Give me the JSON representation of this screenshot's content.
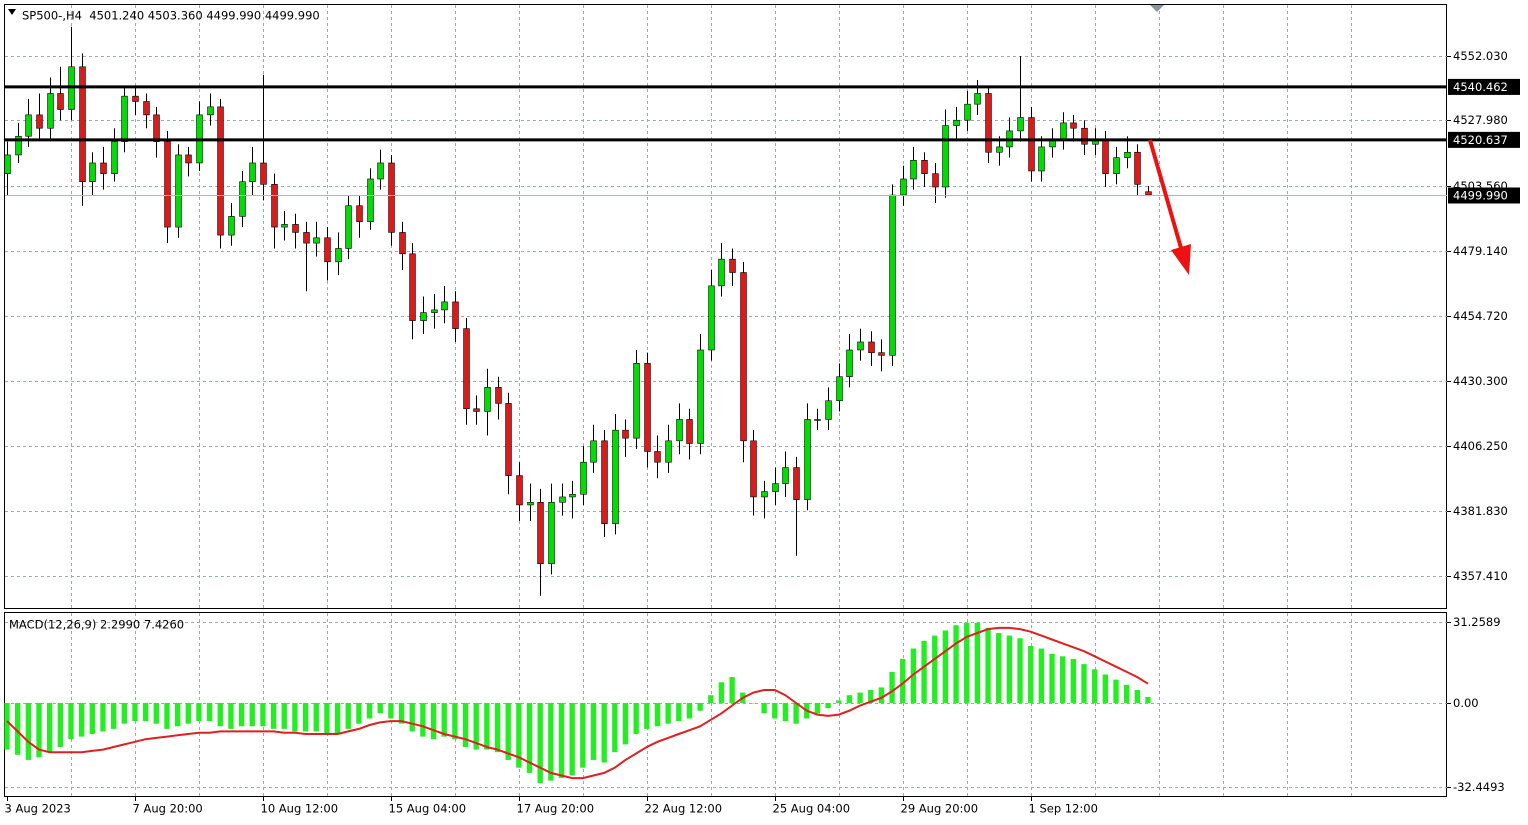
{
  "chart_data": [
    {
      "type": "candlestick",
      "title": "SP500-,H4  4501.240 4503.360 4499.990 4499.990",
      "categories": [
        "3 Aug 2023",
        null,
        null,
        null,
        null,
        null,
        null,
        null,
        null,
        null,
        null,
        null,
        "7 Aug 20:00",
        null,
        null,
        null,
        null,
        null,
        null,
        null,
        null,
        null,
        null,
        null,
        "10 Aug 12:00",
        null,
        null,
        null,
        null,
        null,
        null,
        null,
        null,
        null,
        null,
        null,
        "15 Aug 04:00",
        null,
        null,
        null,
        null,
        null,
        null,
        null,
        null,
        null,
        null,
        null,
        "17 Aug 20:00",
        null,
        null,
        null,
        null,
        null,
        null,
        null,
        null,
        null,
        null,
        null,
        "22 Aug 12:00",
        null,
        null,
        null,
        null,
        null,
        null,
        null,
        null,
        null,
        null,
        null,
        "25 Aug 04:00",
        null,
        null,
        null,
        null,
        null,
        null,
        null,
        null,
        null,
        null,
        null,
        "29 Aug 20:00",
        null,
        null,
        null,
        null,
        null,
        null,
        null,
        null,
        null,
        null,
        null,
        "1 Sep 12:00",
        null,
        null,
        null,
        null,
        null,
        null,
        null,
        null,
        null,
        null,
        null
      ],
      "open": [
        4508,
        4515,
        4522,
        4530,
        4525,
        4538,
        4532,
        4548,
        4505,
        4512,
        4508,
        4520,
        4537,
        4535,
        4530,
        4520,
        4488,
        4515,
        4512,
        4530,
        4533,
        4485,
        4492,
        4505,
        4512,
        4504,
        4488,
        4489,
        4486,
        4482,
        4484,
        4475,
        4480,
        4496,
        4490,
        4506,
        4512,
        4486,
        4478,
        4453,
        4456,
        4457,
        4460,
        4450,
        4420,
        4419,
        4428,
        4422,
        4395,
        4384,
        4385,
        4362,
        4385,
        4387,
        4388,
        4400,
        4408,
        4377,
        4412,
        4409,
        4437,
        4404,
        4400,
        4408,
        4416,
        4407,
        4442,
        4466,
        4476,
        4471,
        4408,
        4387,
        4389,
        4392,
        4398,
        4386,
        4416,
        4416,
        4423,
        4432,
        4442,
        4445,
        4441,
        4440,
        4500,
        4506,
        4513,
        4508,
        4503,
        4526,
        4528,
        4534,
        4538,
        4516,
        4518,
        4524,
        4529,
        4509,
        4518,
        4521,
        4527,
        4525,
        4519,
        4521,
        4508,
        4514,
        4516,
        4501.24
      ],
      "high": [
        4520,
        4527,
        4536,
        4538,
        4544,
        4548,
        4563,
        4553,
        4516,
        4518,
        4525,
        4541,
        4541,
        4538,
        4533,
        4524,
        4519,
        4518,
        4535,
        4538,
        4536,
        4497,
        4509,
        4518,
        4545,
        4508,
        4494,
        4493,
        4490,
        4490,
        4488,
        4486,
        4500,
        4500,
        4510,
        4517,
        4515,
        4490,
        4482,
        4462,
        4463,
        4466,
        4464,
        4454,
        4425,
        4435,
        4432,
        4426,
        4400,
        4392,
        4390,
        4392,
        4392,
        4393,
        4406,
        4414,
        4412,
        4418,
        4416,
        4442,
        4441,
        4410,
        4414,
        4422,
        4420,
        4448,
        4472,
        4482,
        4480,
        4475,
        4412,
        4393,
        4398,
        4404,
        4402,
        4422,
        4420,
        4428,
        4437,
        4448,
        4450,
        4449,
        4446,
        4504,
        4511,
        4518,
        4516,
        4512,
        4532,
        4533,
        4539,
        4543,
        4541,
        4522,
        4529,
        4552,
        4533,
        4522,
        4525,
        4531,
        4530,
        4528,
        4525,
        4524,
        4518,
        4522,
        4519,
        4503.36
      ],
      "low": [
        4500,
        4512,
        4518,
        4521,
        4521,
        4528,
        4528,
        4496,
        4500,
        4502,
        4505,
        4516,
        4530,
        4525,
        4514,
        4482,
        4484,
        4507,
        4509,
        4526,
        4480,
        4481,
        4488,
        4500,
        4498,
        4480,
        4483,
        4480,
        4464,
        4477,
        4468,
        4470,
        4476,
        4484,
        4487,
        4502,
        4481,
        4472,
        4446,
        4448,
        4450,
        4452,
        4445,
        4414,
        4414,
        4410,
        4416,
        4388,
        4378,
        4378,
        4350,
        4358,
        4380,
        4379,
        4384,
        4396,
        4372,
        4373,
        4402,
        4405,
        4398,
        4394,
        4396,
        4403,
        4401,
        4403,
        4438,
        4462,
        4466,
        4400,
        4380,
        4379,
        4384,
        4387,
        4365,
        4382,
        4412,
        4412,
        4419,
        4428,
        4438,
        4436,
        4434,
        4436,
        4496,
        4502,
        4503,
        4497,
        4499,
        4521,
        4524,
        4530,
        4512,
        4511,
        4514,
        4520,
        4505,
        4505,
        4514,
        4517,
        4520,
        4515,
        4515,
        4503,
        4504,
        4510,
        4500,
        4499.99
      ],
      "close": [
        4515,
        4522,
        4530,
        4525,
        4538,
        4532,
        4548,
        4505,
        4512,
        4508,
        4520,
        4537,
        4535,
        4530,
        4520,
        4488,
        4515,
        4512,
        4530,
        4533,
        4485,
        4492,
        4505,
        4512,
        4504,
        4488,
        4489,
        4486,
        4482,
        4484,
        4475,
        4480,
        4496,
        4490,
        4506,
        4512,
        4486,
        4478,
        4453,
        4456,
        4457,
        4460,
        4450,
        4420,
        4419,
        4428,
        4422,
        4395,
        4384,
        4385,
        4362,
        4385,
        4387,
        4388,
        4400,
        4408,
        4377,
        4412,
        4409,
        4437,
        4404,
        4400,
        4408,
        4416,
        4407,
        4442,
        4466,
        4476,
        4471,
        4408,
        4387,
        4389,
        4392,
        4398,
        4386,
        4416,
        4416,
        4423,
        4432,
        4442,
        4445,
        4441,
        4440,
        4500,
        4506,
        4513,
        4508,
        4503,
        4526,
        4528,
        4534,
        4538,
        4516,
        4518,
        4524,
        4529,
        4509,
        4518,
        4521,
        4527,
        4525,
        4519,
        4521,
        4508,
        4514,
        4516,
        4504,
        4499.99
      ],
      "up_color": "#00dd00",
      "down_color": "#dd1a1a",
      "ylim": [
        4345.06,
        4571.12
      ],
      "yticks": [
        {
          "value": 4552.03,
          "label": "4552.030"
        },
        {
          "value": 4527.98,
          "label": "4527.980"
        },
        {
          "value": 4503.56,
          "label": "4503.560"
        },
        {
          "value": 4479.14,
          "label": "4479.140"
        },
        {
          "value": 4454.72,
          "label": "4454.720"
        },
        {
          "value": 4430.3,
          "label": "4430.300"
        },
        {
          "value": 4406.25,
          "label": "4406.250"
        },
        {
          "value": 4381.83,
          "label": "4381.830"
        },
        {
          "value": 4357.41,
          "label": "4357.410"
        }
      ],
      "grid": true,
      "levels": [
        4540.462,
        4520.637
      ],
      "last_price": {
        "value": 4499.99,
        "label": "4499.990"
      }
    },
    {
      "type": "macd",
      "title": "MACD(12,26,9) 2.2990 7.4260",
      "histogram": {
        "color": "#22ee22",
        "values": [
          -18,
          -20,
          -22,
          -21,
          -19,
          -17,
          -14,
          -13,
          -12,
          -11,
          -10,
          -8,
          -7,
          -7,
          -8,
          -10,
          -9,
          -8,
          -7,
          -7,
          -9,
          -10,
          -9,
          -9,
          -9,
          -10,
          -10,
          -11,
          -11,
          -11,
          -12,
          -12,
          -10,
          -8,
          -6,
          -4,
          -6,
          -8,
          -11,
          -13,
          -14,
          -13,
          -14,
          -17,
          -18,
          -18,
          -19,
          -22,
          -25,
          -27,
          -31,
          -30,
          -29,
          -28,
          -25,
          -22,
          -23,
          -19,
          -16,
          -12,
          -10,
          -9,
          -8,
          -7,
          -6,
          -3,
          3,
          8,
          10,
          4,
          0,
          -4,
          -6,
          -7,
          -8,
          -6,
          -4,
          -2,
          1,
          3,
          4,
          5,
          6,
          12,
          17,
          21,
          24,
          26,
          28,
          30,
          31,
          31,
          29,
          27,
          26,
          25,
          22,
          21,
          19,
          18,
          17,
          15,
          13,
          11,
          9,
          7,
          5,
          2.299
        ]
      },
      "signal": {
        "color": "#e02020",
        "values": [
          -7,
          -11,
          -15,
          -18,
          -19,
          -19,
          -19,
          -19,
          -18.5,
          -18,
          -17,
          -16,
          -15,
          -14,
          -13.5,
          -13,
          -12.5,
          -12,
          -11.5,
          -11.5,
          -11,
          -11,
          -11,
          -11,
          -11,
          -11,
          -11.5,
          -11.5,
          -12,
          -12,
          -12,
          -12,
          -11,
          -10,
          -8.5,
          -7.5,
          -7,
          -7,
          -8,
          -9,
          -10.5,
          -12,
          -13,
          -14,
          -15.5,
          -17,
          -18,
          -19.5,
          -21,
          -23,
          -25,
          -27,
          -28,
          -29,
          -29,
          -28,
          -27,
          -25,
          -22,
          -19.5,
          -17,
          -15,
          -13.5,
          -12,
          -10.5,
          -9,
          -6.5,
          -4,
          -1,
          2,
          4,
          5,
          5,
          3,
          0,
          -3,
          -4.5,
          -5,
          -4.5,
          -3,
          -1,
          0.5,
          2,
          4.5,
          7.5,
          11,
          14,
          17,
          20,
          23,
          25.5,
          27,
          28.5,
          29,
          29,
          28.5,
          27.5,
          26,
          24.5,
          23,
          21.5,
          20,
          18,
          16,
          14,
          12,
          10,
          7.426
        ]
      },
      "ylim": [
        -36.31,
        34.734
      ],
      "yticks": [
        31.2589,
        {
          "value": 0,
          "label": "0.00"
        },
        -32.4493
      ]
    }
  ]
}
